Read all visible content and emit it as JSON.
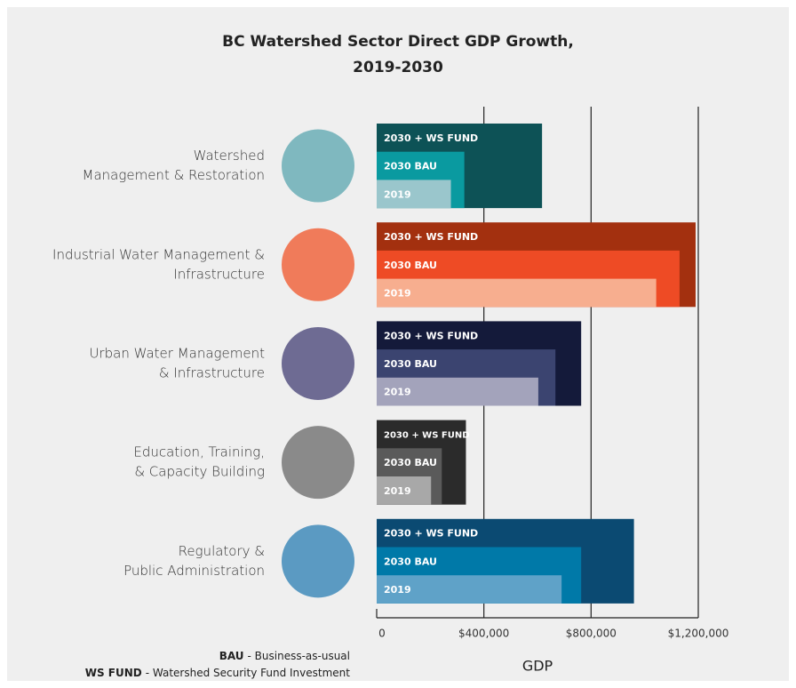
{
  "chart_data": {
    "type": "nested_bar",
    "title": [
      "BC Watershed Sector Direct GDP Growth,",
      "2019-2030"
    ],
    "categories": [
      [
        "Watershed",
        "Management & Restoration"
      ],
      [
        "Industrial Water Management &",
        "Infrastructure"
      ],
      [
        "Urban Water Management",
        "& Infrastructure"
      ],
      [
        "Education, Training,",
        "& Capacity Building"
      ],
      [
        "Regulatory &",
        "Public Administration"
      ]
    ],
    "icon_colors": [
      "#7fb8bf",
      "#f07b5a",
      "#6e6b93",
      "#8a8a8a",
      "#5b9ac2"
    ],
    "series": [
      {
        "name": "2030 + WS FUND",
        "colors": [
          "#0d5256",
          "#a3300f",
          "#141a3a",
          "#2b2b2b",
          "#0b4a72"
        ],
        "values": [
          617000,
          1190000,
          763000,
          333000,
          960000
        ]
      },
      {
        "name": "2030 BAU",
        "colors": [
          "#0a9aa0",
          "#ee4b25",
          "#3b4470",
          "#5a5a5a",
          "#0079a8"
        ],
        "values": [
          327000,
          1130000,
          667000,
          243000,
          763000
        ]
      },
      {
        "name": "2019",
        "colors": [
          "#9ac6cc",
          "#f7ae8f",
          "#a3a3bb",
          "#a8a8a8",
          "#5fa2c8"
        ],
        "values": [
          277000,
          1043000,
          603000,
          203000,
          690000
        ]
      }
    ],
    "xlim": [
      0,
      1200000
    ],
    "xticks": [
      0,
      {
        "value": 400000,
        "label": "$400,000"
      },
      {
        "value": 800000,
        "label": "$800,000"
      },
      {
        "value": 1200000,
        "label": "$1,200,000"
      }
    ],
    "xlabel": "GDP",
    "notes": [
      {
        "term": "BAU",
        "definition": "- Business-as-usual"
      },
      {
        "term": "WS FUND",
        "definition": "- Watershed Security Fund Investment"
      }
    ]
  }
}
